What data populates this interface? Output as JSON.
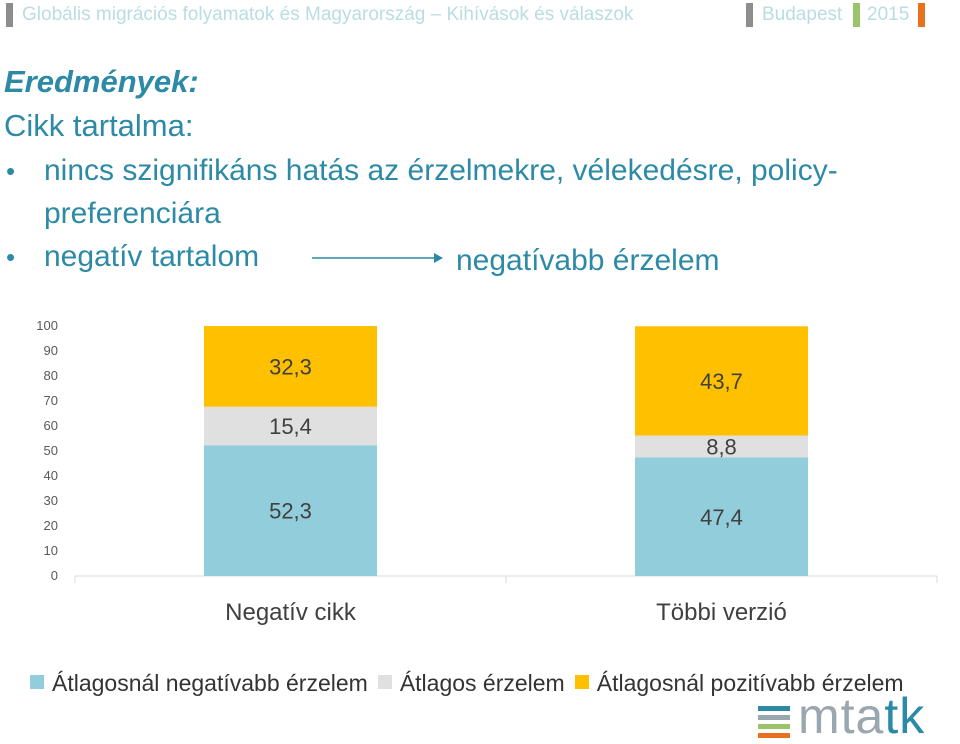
{
  "header": {
    "title": "Globális migrációs folyamatok és Magyarország – Kihívások és válaszok",
    "city": "Budapest",
    "year": "2015",
    "colors": {
      "bar1": "#8d8d8d",
      "bar2": "#9ac36b",
      "bar3": "#e8711f"
    }
  },
  "slide": {
    "title": "Eredmények:",
    "subtitle": "Cikk tartalma:",
    "bullets": [
      {
        "line1": "nincs szignifikáns hatás az érzelmekre, vélekedésre, policy-",
        "line2": "preferenciára"
      },
      {
        "text": "negatív tartalom",
        "arrow_target": "negatívabb érzelem"
      }
    ]
  },
  "chart_data": {
    "type": "bar",
    "stacked": true,
    "categories": [
      "Negatív cikk",
      "Többi verzió"
    ],
    "series": [
      {
        "name": "Átlagosnál negatívabb érzelem",
        "values": [
          52.3,
          47.4
        ],
        "labels": [
          "52,3",
          "47,4"
        ],
        "color": "#92cddc"
      },
      {
        "name": "Átlagos érzelem",
        "values": [
          15.4,
          8.8
        ],
        "labels": [
          "15,4",
          "8,8"
        ],
        "color": "#e0e0e0"
      },
      {
        "name": "Átlagosnál pozitívabb érzelem",
        "values": [
          32.3,
          43.7
        ],
        "labels": [
          "32,3",
          "43,7"
        ],
        "color": "#ffc000"
      }
    ],
    "ylim": [
      0,
      100
    ],
    "yticks": [
      "0",
      "10",
      "20",
      "30",
      "40",
      "50",
      "60",
      "70",
      "80",
      "90",
      "100"
    ],
    "legend": "bottom",
    "grid": false
  },
  "logo": {
    "text_main": "mta",
    "text_accent": "tk",
    "colors": [
      "#2c8aa6",
      "#9aa7ae",
      "#9ac36b",
      "#e8711f"
    ]
  }
}
